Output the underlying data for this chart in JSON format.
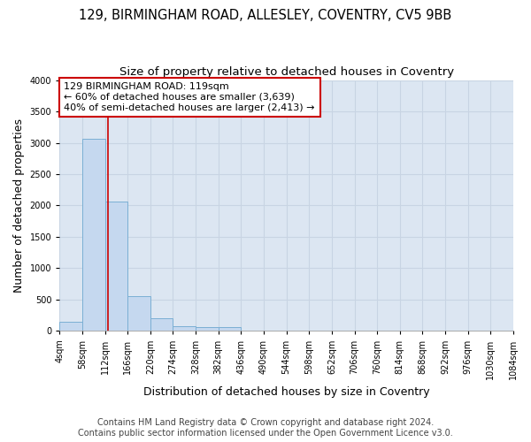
{
  "title_line1": "129, BIRMINGHAM ROAD, ALLESLEY, COVENTRY, CV5 9BB",
  "title_line2": "Size of property relative to detached houses in Coventry",
  "xlabel": "Distribution of detached houses by size in Coventry",
  "ylabel": "Number of detached properties",
  "footer_line1": "Contains HM Land Registry data © Crown copyright and database right 2024.",
  "footer_line2": "Contains public sector information licensed under the Open Government Licence v3.0.",
  "annotation_line1": "129 BIRMINGHAM ROAD: 119sqm",
  "annotation_line2": "← 60% of detached houses are smaller (3,639)",
  "annotation_line3": "40% of semi-detached houses are larger (2,413) →",
  "property_size": 119,
  "bin_edges": [
    4,
    58,
    112,
    166,
    220,
    274,
    328,
    382,
    436,
    490,
    544,
    598,
    652,
    706,
    760,
    814,
    868,
    922,
    976,
    1030,
    1084
  ],
  "bar_heights": [
    150,
    3070,
    2060,
    560,
    200,
    75,
    55,
    55,
    0,
    0,
    0,
    0,
    0,
    0,
    0,
    0,
    0,
    0,
    0,
    0
  ],
  "bar_color": "#c5d8ef",
  "bar_edge_color": "#7bafd4",
  "vline_color": "#cc0000",
  "vline_x": 119,
  "ylim": [
    0,
    4000
  ],
  "yticks": [
    0,
    500,
    1000,
    1500,
    2000,
    2500,
    3000,
    3500,
    4000
  ],
  "grid_color": "#c8d4e3",
  "ax_background": "#dce6f2",
  "fig_background": "#ffffff",
  "annotation_box_facecolor": "#ffffff",
  "annotation_box_edge": "#cc0000",
  "title_fontsize": 10.5,
  "subtitle_fontsize": 9.5,
  "label_fontsize": 9,
  "tick_fontsize": 7,
  "annotation_fontsize": 8,
  "footer_fontsize": 7
}
